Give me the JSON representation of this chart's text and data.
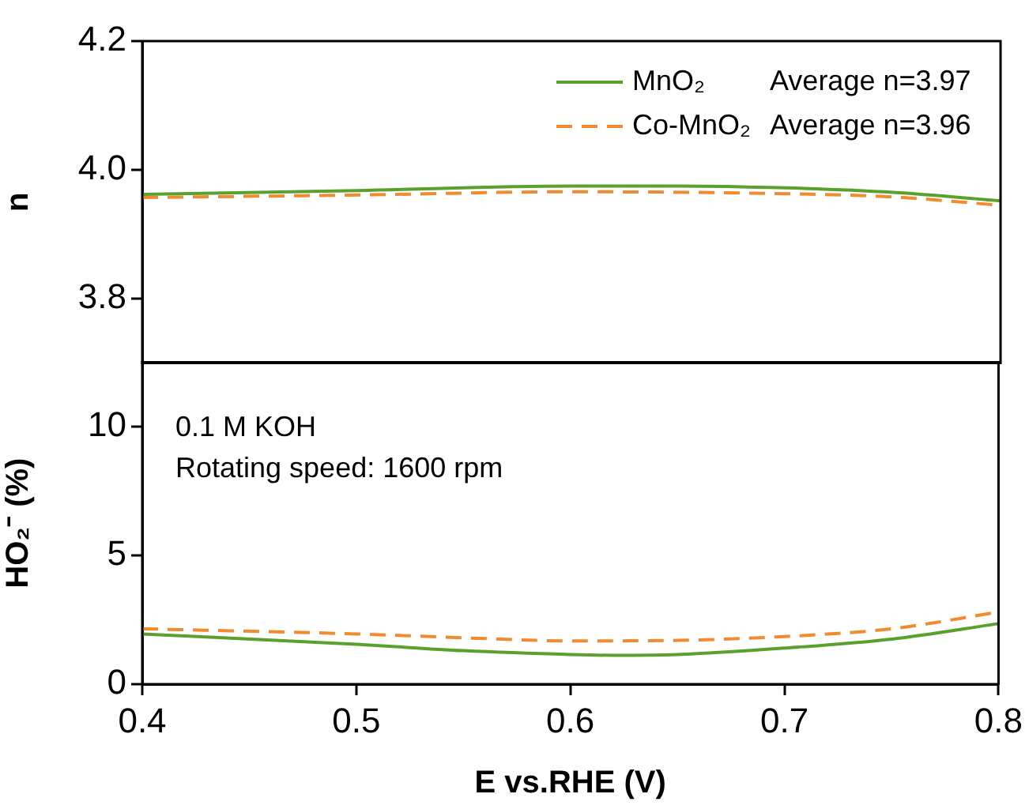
{
  "chart_data": [
    {
      "type": "line",
      "ylabel": "n",
      "xlim": [
        0.4,
        0.8
      ],
      "ylim": [
        3.7,
        4.2
      ],
      "yticks": [
        {
          "value": 3.8,
          "label": "3.8"
        },
        {
          "value": 4,
          "label": "4.0"
        },
        {
          "value": 4.2,
          "label": "4.2"
        }
      ],
      "tick_labels": "y",
      "legend": "top right",
      "grid": false,
      "marker": "none",
      "annotations": [
        "Average n=3.97",
        "Average n=3.96"
      ],
      "series": [
        {
          "name": "MnO₂",
          "color": "#5aa02c",
          "line_style": "solid",
          "x": [
            0.4,
            0.5,
            0.6,
            0.65,
            0.7,
            0.75,
            0.8
          ],
          "values": [
            3.962,
            3.968,
            3.975,
            3.975,
            3.972,
            3.965,
            3.952
          ]
        },
        {
          "name": "Co-MnO₂",
          "color": "#f28a30",
          "line_style": "dashed",
          "x": [
            0.4,
            0.5,
            0.6,
            0.7,
            0.75,
            0.8
          ],
          "values": [
            3.957,
            3.961,
            3.966,
            3.963,
            3.958,
            3.945
          ]
        }
      ]
    },
    {
      "type": "line",
      "xlabel": "E vs.RHE (V)",
      "ylabel": "HO₂⁻ (%)",
      "xlim": [
        0.4,
        0.8
      ],
      "xticks": [
        0.4,
        0.5,
        0.6,
        0.7,
        0.8
      ],
      "ylim": [
        0,
        12.5
      ],
      "yticks": [
        0,
        5,
        10
      ],
      "legend": false,
      "grid": false,
      "marker": "none",
      "annotations": [
        "0.1 M KOH",
        "Rotating speed: 1600 rpm"
      ],
      "series": [
        {
          "color": "#5aa02c",
          "line_style": "solid",
          "x": [
            0.4,
            0.5,
            0.55,
            0.6,
            0.62,
            0.65,
            0.7,
            0.75,
            0.8
          ],
          "values": [
            1.95,
            1.55,
            1.3,
            1.15,
            1.12,
            1.15,
            1.4,
            1.75,
            2.35
          ]
        },
        {
          "color": "#f28a30",
          "line_style": "dashed",
          "x": [
            0.4,
            0.5,
            0.55,
            0.6,
            0.65,
            0.7,
            0.75,
            0.8
          ],
          "values": [
            2.15,
            1.95,
            1.8,
            1.68,
            1.7,
            1.85,
            2.15,
            2.8
          ]
        }
      ]
    }
  ]
}
